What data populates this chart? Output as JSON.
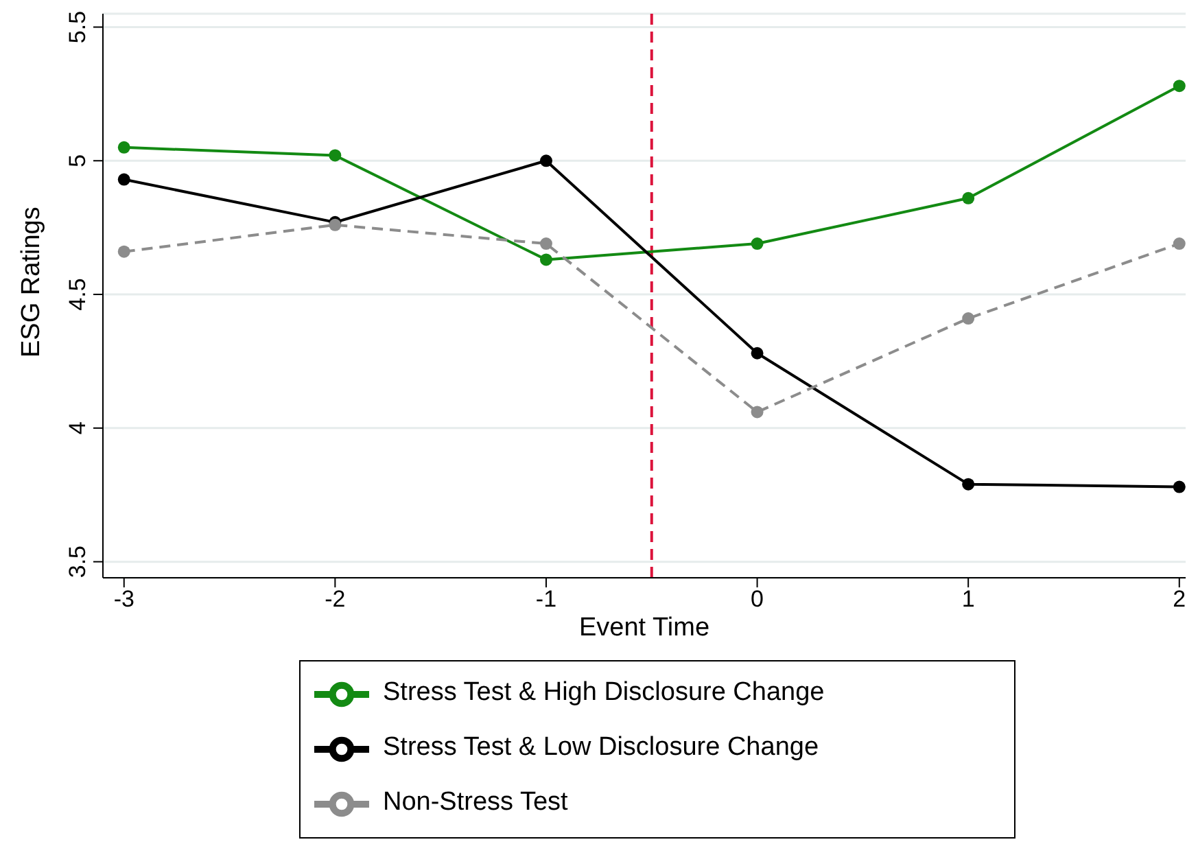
{
  "chart_data": {
    "type": "line",
    "xlabel": "Event Time",
    "ylabel": "ESG Ratings",
    "x": [
      -3,
      -2,
      -1,
      0,
      1,
      2
    ],
    "series": [
      {
        "name": "Stress Test & High Disclosure Change",
        "color": "#138a13",
        "values": [
          5.05,
          5.02,
          4.63,
          4.69,
          4.86,
          5.28
        ],
        "line_style": "solid"
      },
      {
        "name": "Stress Test & Low Disclosure Change",
        "color": "#000000",
        "values": [
          4.93,
          4.77,
          5.0,
          4.28,
          3.79,
          3.78
        ],
        "line_style": "solid"
      },
      {
        "name": "Non-Stress Test",
        "color": "#8c8c8c",
        "values": [
          4.66,
          4.76,
          4.69,
          4.06,
          4.41,
          4.69
        ],
        "line_style": "dashed"
      }
    ],
    "xlim": [
      -3.1,
      2.03
    ],
    "xticks": [
      -3,
      -2,
      -1,
      0,
      1,
      2
    ],
    "ylim": [
      3.44,
      5.55
    ],
    "yticks": [
      3.5,
      4,
      4.5,
      5,
      5.5
    ],
    "ref_lines": [
      {
        "axis": "x",
        "value": -0.5,
        "color": "#dc143c",
        "line_style": "dashed"
      }
    ],
    "grid": "y",
    "legend": "bottom",
    "marker": "circle"
  }
}
